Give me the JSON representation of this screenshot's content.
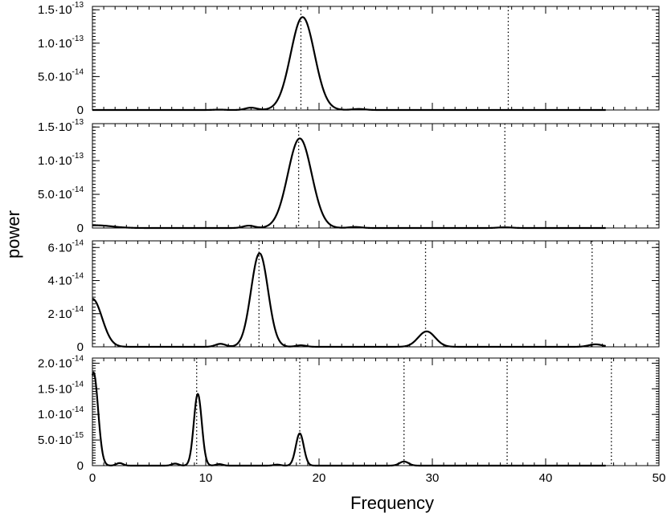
{
  "chart_data": {
    "type": "line",
    "xlabel": "Frequency",
    "ylabel": "power",
    "xlim": [
      0,
      50
    ],
    "x_ticks": [
      "0",
      "10",
      "20",
      "30",
      "40",
      "50"
    ],
    "x_tick_values": [
      0,
      10,
      20,
      30,
      40,
      50
    ],
    "grid": false,
    "panels": [
      {
        "ylim": [
          0,
          1.55e-13
        ],
        "y_ticks": [
          {
            "value": 0,
            "mant": "0",
            "exp": ""
          },
          {
            "value": 5e-14,
            "mant": "5.0·10",
            "exp": "-14"
          },
          {
            "value": 1e-13,
            "mant": "1.0·10",
            "exp": "-13"
          },
          {
            "value": 1.5e-13,
            "mant": "1.5·10",
            "exp": "-13"
          }
        ],
        "markers": [
          18.4,
          36.7
        ],
        "curve": {
          "base": 0,
          "x_end": 45.3,
          "peaks": [
            {
              "center": 18.55,
              "height": 1.39e-13,
              "width": 1.05
            },
            {
              "center": 14.0,
              "height": 3.5e-15,
              "width": 0.5
            },
            {
              "center": 23.5,
              "height": 1.5e-15,
              "width": 0.55
            },
            {
              "center": 11.2,
              "height": 5e-16,
              "width": 0.5
            }
          ]
        }
      },
      {
        "ylim": [
          0,
          1.55e-13
        ],
        "y_ticks": [
          {
            "value": 0,
            "mant": "0",
            "exp": ""
          },
          {
            "value": 5e-14,
            "mant": "5.0·10",
            "exp": "-14"
          },
          {
            "value": 1e-13,
            "mant": "1.0·10",
            "exp": "-13"
          },
          {
            "value": 1.5e-13,
            "mant": "1.5·10",
            "exp": "-13"
          }
        ],
        "markers": [
          18.2,
          36.4
        ],
        "curve": {
          "base": 0,
          "x_end": 45.3,
          "peaks": [
            {
              "center": 18.3,
              "height": 1.33e-13,
              "width": 1.05
            },
            {
              "center": 0.3,
              "height": 4e-15,
              "width": 1.4
            },
            {
              "center": 13.8,
              "height": 3.5e-15,
              "width": 0.5
            },
            {
              "center": 23.2,
              "height": 1.5e-15,
              "width": 0.55
            },
            {
              "center": 36.4,
              "height": 1e-15,
              "width": 0.6
            }
          ]
        }
      },
      {
        "ylim": [
          0,
          6.4e-14
        ],
        "y_ticks": [
          {
            "value": 0,
            "mant": "0",
            "exp": ""
          },
          {
            "value": 2e-14,
            "mant": "2·10",
            "exp": "-14"
          },
          {
            "value": 4e-14,
            "mant": "4·10",
            "exp": "-14"
          },
          {
            "value": 6e-14,
            "mant": "6·10",
            "exp": "-14"
          }
        ],
        "markers": [
          14.7,
          29.4,
          44.1
        ],
        "curve": {
          "base": 0,
          "x_end": 45.3,
          "peaks": [
            {
              "center": 14.75,
              "height": 5.65e-14,
              "width": 0.75
            },
            {
              "center": 0.0,
              "height": 2.9e-14,
              "width": 0.85
            },
            {
              "center": 29.5,
              "height": 9.3e-15,
              "width": 0.75
            },
            {
              "center": 44.4,
              "height": 1.5e-15,
              "width": 0.6
            },
            {
              "center": 11.3,
              "height": 1.8e-15,
              "width": 0.45
            },
            {
              "center": 18.4,
              "height": 9e-16,
              "width": 0.45
            }
          ]
        }
      },
      {
        "ylim": [
          0,
          2.1e-14
        ],
        "y_ticks": [
          {
            "value": 0,
            "mant": "0",
            "exp": ""
          },
          {
            "value": 5e-15,
            "mant": "5.0·10",
            "exp": "-15"
          },
          {
            "value": 1e-14,
            "mant": "1.0·10",
            "exp": "-14"
          },
          {
            "value": 1.5e-14,
            "mant": "1.5·10",
            "exp": "-14"
          },
          {
            "value": 2e-14,
            "mant": "2.0·10",
            "exp": "-14"
          }
        ],
        "markers": [
          9.2,
          18.3,
          27.5,
          36.6,
          45.8
        ],
        "curve": {
          "base": 0,
          "x_end": 45.3,
          "peaks": [
            {
              "center": 0.1,
              "height": 1.82e-14,
              "width": 0.4
            },
            {
              "center": 9.3,
              "height": 1.4e-14,
              "width": 0.35
            },
            {
              "center": 18.3,
              "height": 6.3e-15,
              "width": 0.35
            },
            {
              "center": 27.5,
              "height": 8e-16,
              "width": 0.4
            },
            {
              "center": 2.4,
              "height": 5e-16,
              "width": 0.3
            },
            {
              "center": 7.3,
              "height": 4e-16,
              "width": 0.3
            },
            {
              "center": 11.2,
              "height": 3e-16,
              "width": 0.3
            },
            {
              "center": 16.3,
              "height": 2e-16,
              "width": 0.3
            }
          ]
        }
      }
    ]
  }
}
